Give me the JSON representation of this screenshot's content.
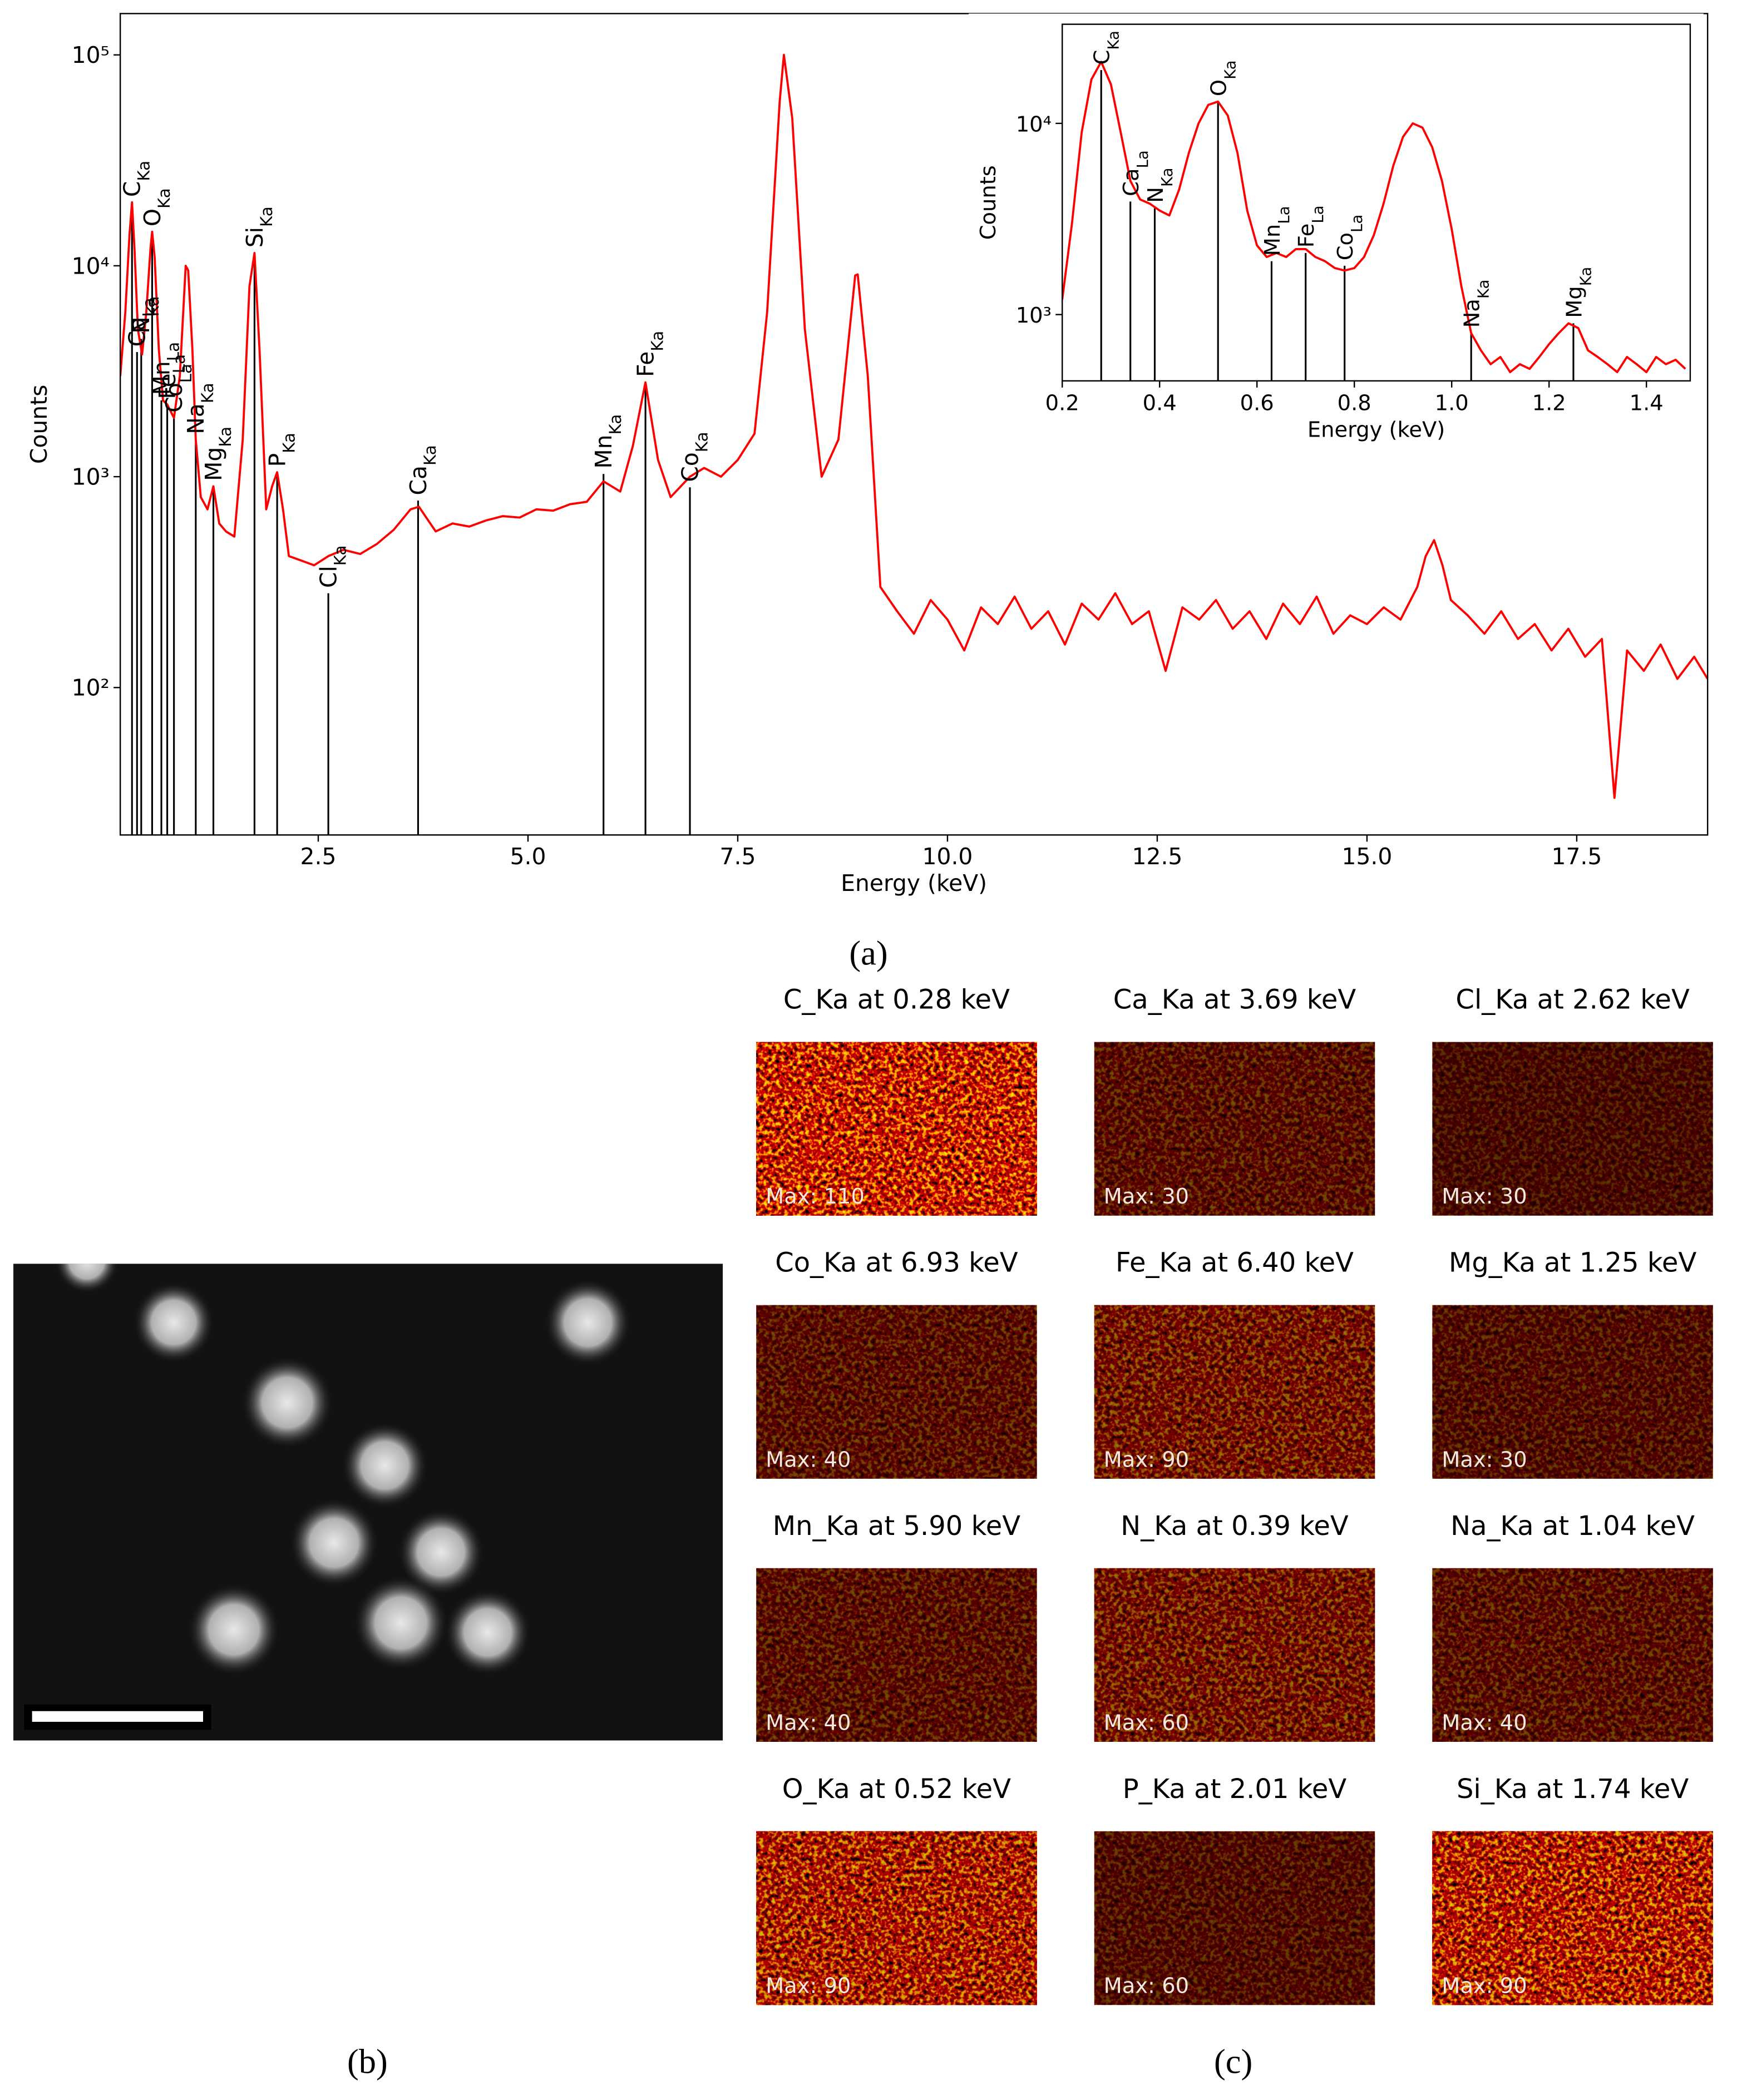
{
  "chart_data": [
    {
      "type": "line",
      "xlabel": "Energy (keV)",
      "ylabel": "Counts",
      "color": "#ff0000",
      "yscale": "log",
      "grid": false,
      "xlim": [
        0.14,
        19.06
      ],
      "ylim": [
        20,
        157000
      ],
      "xticks": [
        2.5,
        {
          "value": 5,
          "label": "5.0"
        },
        7.5,
        {
          "value": 10,
          "label": "10.0"
        },
        12.5,
        {
          "value": 15,
          "label": "15.0"
        },
        17.5
      ],
      "yticks": [
        {
          "value": 100,
          "label": "10²"
        },
        {
          "value": 1000,
          "label": "10³"
        },
        {
          "value": 10000,
          "label": "10⁴"
        },
        {
          "value": 100000,
          "label": "10⁵"
        }
      ],
      "x": [
        0.14,
        0.2,
        0.25,
        0.28,
        0.31,
        0.35,
        0.4,
        0.45,
        0.5,
        0.52,
        0.55,
        0.6,
        0.65,
        0.7,
        0.78,
        0.85,
        0.92,
        0.95,
        1.0,
        1.04,
        1.1,
        1.18,
        1.25,
        1.32,
        1.4,
        1.5,
        1.6,
        1.68,
        1.74,
        1.8,
        1.88,
        1.95,
        2.01,
        2.08,
        2.15,
        2.3,
        2.45,
        2.62,
        2.8,
        3.0,
        3.2,
        3.4,
        3.6,
        3.7,
        3.9,
        4.1,
        4.3,
        4.5,
        4.7,
        4.9,
        5.1,
        5.3,
        5.5,
        5.7,
        5.9,
        6.1,
        6.25,
        6.4,
        6.55,
        6.7,
        6.93,
        7.1,
        7.3,
        7.5,
        7.7,
        7.85,
        8.0,
        8.05,
        8.15,
        8.3,
        8.5,
        8.7,
        8.9,
        8.93,
        9.05,
        9.2,
        9.4,
        9.6,
        9.8,
        10.0,
        10.2,
        10.4,
        10.6,
        10.8,
        11.0,
        11.2,
        11.4,
        11.6,
        11.8,
        12.0,
        12.2,
        12.4,
        12.6,
        12.8,
        13.0,
        13.2,
        13.4,
        13.6,
        13.8,
        14.0,
        14.2,
        14.4,
        14.6,
        14.8,
        15.0,
        15.2,
        15.4,
        15.6,
        15.7,
        15.8,
        15.9,
        16.0,
        16.2,
        16.4,
        16.6,
        16.8,
        17.0,
        17.2,
        17.4,
        17.6,
        17.8,
        17.95,
        18.1,
        18.3,
        18.5,
        18.7,
        18.9,
        19.06
      ],
      "values": [
        3000,
        6000,
        14000,
        20000,
        12000,
        5000,
        3800,
        6000,
        12000,
        14500,
        11000,
        4000,
        2300,
        2200,
        1900,
        3000,
        10000,
        9500,
        4000,
        1500,
        800,
        700,
        900,
        600,
        550,
        520,
        1500,
        8000,
        11500,
        4000,
        700,
        900,
        1050,
        700,
        420,
        400,
        380,
        420,
        450,
        430,
        480,
        560,
        700,
        720,
        550,
        600,
        580,
        620,
        650,
        640,
        700,
        690,
        740,
        760,
        950,
        850,
        1400,
        2800,
        1200,
        800,
        1000,
        1100,
        1000,
        1200,
        1600,
        6000,
        60000,
        100000,
        50000,
        5000,
        1000,
        1500,
        9000,
        9100,
        3000,
        300,
        230,
        180,
        260,
        210,
        150,
        240,
        200,
        270,
        190,
        230,
        160,
        250,
        210,
        280,
        200,
        230,
        120,
        240,
        210,
        260,
        190,
        230,
        170,
        250,
        200,
        270,
        180,
        220,
        200,
        240,
        210,
        300,
        420,
        500,
        380,
        260,
        220,
        180,
        230,
        170,
        200,
        150,
        190,
        140,
        170,
        30,
        150,
        120,
        160,
        110,
        140,
        110
      ],
      "annotations": [
        {
          "element": "C",
          "line": "Ka",
          "x": 0.28,
          "y": 20000
        },
        {
          "element": "Ca",
          "line": "La",
          "x": 0.34,
          "y": 3900
        },
        {
          "element": "N",
          "line": "Ka",
          "x": 0.39,
          "y": 4500
        },
        {
          "element": "O",
          "line": "Ka",
          "x": 0.52,
          "y": 14500
        },
        {
          "element": "Mn",
          "line": "La",
          "x": 0.63,
          "y": 2300
        },
        {
          "element": "Fe",
          "line": "La",
          "x": 0.7,
          "y": 2200
        },
        {
          "element": "Co",
          "line": "La",
          "x": 0.78,
          "y": 1900
        },
        {
          "element": "Na",
          "line": "Ka",
          "x": 1.04,
          "y": 1500
        },
        {
          "element": "Mg",
          "line": "Ka",
          "x": 1.25,
          "y": 900
        },
        {
          "element": "Si",
          "line": "Ka",
          "x": 1.74,
          "y": 11500
        },
        {
          "element": "P",
          "line": "Ka",
          "x": 2.01,
          "y": 1050
        },
        {
          "element": "Cl",
          "line": "Ka",
          "x": 2.62,
          "y": 280
        },
        {
          "element": "Ca",
          "line": "Ka",
          "x": 3.69,
          "y": 770
        },
        {
          "element": "Mn",
          "line": "Ka",
          "x": 5.9,
          "y": 1030
        },
        {
          "element": "Fe",
          "line": "Ka",
          "x": 6.4,
          "y": 2800
        },
        {
          "element": "Co",
          "line": "Ka",
          "x": 6.93,
          "y": 890
        }
      ]
    },
    {
      "type": "line",
      "xlabel": "Energy (keV)",
      "ylabel": "Counts",
      "color": "#ff0000",
      "yscale": "log",
      "grid": false,
      "xlim": [
        0.2,
        1.49
      ],
      "ylim": [
        450,
        33000
      ],
      "xticks": [
        0.2,
        0.4,
        0.6,
        0.8,
        {
          "value": 1,
          "label": "1.0"
        },
        1.2,
        1.4
      ],
      "yticks": [
        {
          "value": 1000,
          "label": "10³"
        },
        {
          "value": 10000,
          "label": "10⁴"
        }
      ],
      "x": [
        0.2,
        0.22,
        0.24,
        0.26,
        0.28,
        0.3,
        0.32,
        0.34,
        0.36,
        0.38,
        0.4,
        0.42,
        0.44,
        0.46,
        0.48,
        0.5,
        0.52,
        0.54,
        0.56,
        0.58,
        0.6,
        0.62,
        0.64,
        0.66,
        0.68,
        0.7,
        0.72,
        0.74,
        0.76,
        0.78,
        0.8,
        0.82,
        0.84,
        0.86,
        0.88,
        0.9,
        0.92,
        0.94,
        0.96,
        0.98,
        1.0,
        1.02,
        1.04,
        1.06,
        1.08,
        1.1,
        1.12,
        1.14,
        1.16,
        1.18,
        1.2,
        1.22,
        1.24,
        1.26,
        1.28,
        1.3,
        1.32,
        1.34,
        1.36,
        1.38,
        1.4,
        1.42,
        1.44,
        1.46,
        1.48
      ],
      "values": [
        1200,
        3000,
        9000,
        17000,
        21000,
        16000,
        9000,
        5000,
        4000,
        3800,
        3500,
        3300,
        4500,
        7000,
        10000,
        12500,
        13000,
        11000,
        7000,
        3500,
        2300,
        2000,
        2100,
        2000,
        2200,
        2200,
        2000,
        1900,
        1750,
        1700,
        1750,
        2000,
        2600,
        3800,
        6000,
        8500,
        10000,
        9500,
        7500,
        5000,
        2800,
        1400,
        800,
        650,
        550,
        600,
        500,
        550,
        520,
        600,
        700,
        800,
        900,
        850,
        650,
        600,
        550,
        500,
        600,
        550,
        500,
        600,
        550,
        580,
        520
      ],
      "annotations": [
        {
          "element": "C",
          "line": "Ka",
          "x": 0.28,
          "y": 19000
        },
        {
          "element": "Ca",
          "line": "La",
          "x": 0.34,
          "y": 3900
        },
        {
          "element": "N",
          "line": "Ka",
          "x": 0.39,
          "y": 3600
        },
        {
          "element": "O",
          "line": "Ka",
          "x": 0.52,
          "y": 13000
        },
        {
          "element": "Mn",
          "line": "La",
          "x": 0.63,
          "y": 1900
        },
        {
          "element": "Fe",
          "line": "La",
          "x": 0.7,
          "y": 2100
        },
        {
          "element": "Co",
          "line": "La",
          "x": 0.78,
          "y": 1800
        },
        {
          "element": "Na",
          "line": "Ka",
          "x": 1.04,
          "y": 800
        },
        {
          "element": "Mg",
          "line": "Ka",
          "x": 1.25,
          "y": 900
        }
      ]
    }
  ],
  "panel_labels": [
    "(a)",
    "(b)",
    "(c)"
  ],
  "maps": [
    {
      "title": "C_Ka at 0.28 keV",
      "max": "Max: 110"
    },
    {
      "title": "Ca_Ka at 3.69 keV",
      "max": "Max: 30"
    },
    {
      "title": "Cl_Ka at 2.62 keV",
      "max": "Max: 30"
    },
    {
      "title": "Co_Ka at 6.93 keV",
      "max": "Max: 40"
    },
    {
      "title": "Fe_Ka at 6.40 keV",
      "max": "Max: 90"
    },
    {
      "title": "Mg_Ka at 1.25 keV",
      "max": "Max: 30"
    },
    {
      "title": "Mn_Ka at 5.90 keV",
      "max": "Max: 40"
    },
    {
      "title": "N_Ka at 0.39 keV",
      "max": "Max: 60"
    },
    {
      "title": "Na_Ka at 1.04 keV",
      "max": "Max: 40"
    },
    {
      "title": "O_Ka at 0.52 keV",
      "max": "Max: 90"
    },
    {
      "title": "P_Ka at 2.01 keV",
      "max": "Max: 60"
    },
    {
      "title": "Si_Ka at 1.74 keV",
      "max": "Max: 90"
    }
  ]
}
